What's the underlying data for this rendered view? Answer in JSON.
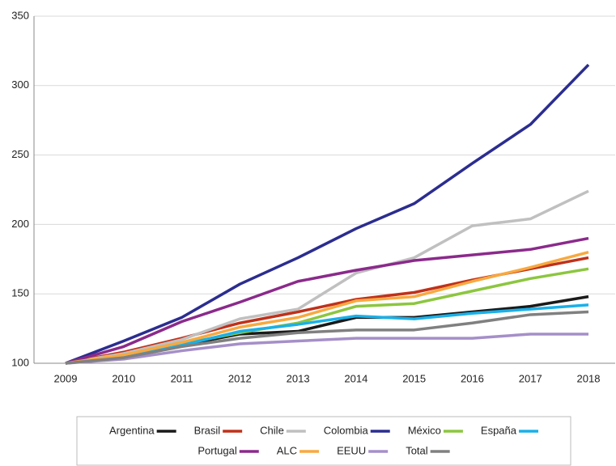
{
  "chart_data": {
    "type": "line",
    "x": [
      "2009",
      "2010",
      "2011",
      "2012",
      "2013",
      "2014",
      "2015",
      "2016",
      "2017",
      "2018"
    ],
    "ylim": [
      100,
      350
    ],
    "yticks": [
      100,
      150,
      200,
      250,
      300,
      350
    ],
    "grid": true,
    "series": [
      {
        "name": "Argentina",
        "color": "#1a1a1a",
        "values": [
          100,
          105,
          113,
          121,
          123,
          133,
          133,
          137,
          141,
          148
        ]
      },
      {
        "name": "Brasil",
        "color": "#c0311a",
        "values": [
          100,
          108,
          118,
          129,
          137,
          146,
          151,
          160,
          168,
          176
        ]
      },
      {
        "name": "Chile",
        "color": "#c0c0c0",
        "values": [
          100,
          107,
          117,
          132,
          139,
          165,
          176,
          199,
          204,
          224
        ]
      },
      {
        "name": "Colombia",
        "color": "#2b2d8f",
        "values": [
          100,
          116,
          133,
          157,
          176,
          197,
          215,
          244,
          272,
          315
        ]
      },
      {
        "name": "México",
        "color": "#8cc63f",
        "values": [
          100,
          105,
          114,
          122,
          129,
          141,
          143,
          152,
          161,
          168
        ]
      },
      {
        "name": "España",
        "color": "#1ab0e8",
        "values": [
          100,
          104,
          113,
          123,
          128,
          134,
          132,
          136,
          139,
          142
        ]
      },
      {
        "name": "Portugal",
        "color": "#8b2a8b",
        "values": [
          100,
          112,
          130,
          144,
          159,
          167,
          174,
          178,
          182,
          190
        ]
      },
      {
        "name": "ALC",
        "color": "#f7a940",
        "values": [
          100,
          106,
          115,
          126,
          133,
          145,
          148,
          159,
          169,
          180
        ]
      },
      {
        "name": "EEUU",
        "color": "#a58fc8",
        "values": [
          100,
          103,
          109,
          114,
          116,
          118,
          118,
          118,
          121,
          121
        ]
      },
      {
        "name": "Total",
        "color": "#808080",
        "values": [
          100,
          104,
          112,
          118,
          122,
          124,
          124,
          129,
          135,
          137
        ]
      }
    ]
  }
}
